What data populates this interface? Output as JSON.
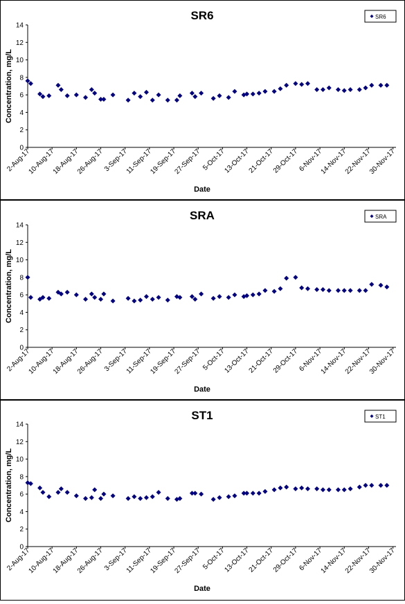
{
  "chart_data": [
    {
      "type": "scatter",
      "title": "SR6",
      "xlabel": "Date",
      "ylabel": "Concentration, mg/L",
      "ylim": [
        0,
        14
      ],
      "yticks": [
        "0",
        "2",
        "4",
        "6",
        "8",
        "10",
        "12",
        "14"
      ],
      "xticks": [
        "2-Aug-17",
        "10-Aug-17",
        "18-Aug-17",
        "26-Aug-17",
        "3-Sep-17",
        "11-Sep-17",
        "19-Sep-17",
        "27-Sep-17",
        "5-Oct-17",
        "13-Oct-17",
        "21-Oct-17",
        "29-Oct-17",
        "6-Nov-17",
        "14-Nov-17",
        "22-Nov-17",
        "30-Nov-17"
      ],
      "xlim": [
        "2017-08-02",
        "2017-12-01"
      ],
      "grid": false,
      "legend_position": "top-right",
      "marker_color": "#000080",
      "series": [
        {
          "name": "SR6",
          "x": [
            "2017-08-02",
            "2017-08-03",
            "2017-08-06",
            "2017-08-07",
            "2017-08-09",
            "2017-08-12",
            "2017-08-13",
            "2017-08-15",
            "2017-08-18",
            "2017-08-21",
            "2017-08-23",
            "2017-08-24",
            "2017-08-26",
            "2017-08-27",
            "2017-08-30",
            "2017-09-04",
            "2017-09-06",
            "2017-09-08",
            "2017-09-10",
            "2017-09-12",
            "2017-09-14",
            "2017-09-17",
            "2017-09-20",
            "2017-09-21",
            "2017-09-25",
            "2017-09-26",
            "2017-09-28",
            "2017-10-02",
            "2017-10-04",
            "2017-10-07",
            "2017-10-09",
            "2017-10-12",
            "2017-10-13",
            "2017-10-15",
            "2017-10-17",
            "2017-10-19",
            "2017-10-22",
            "2017-10-24",
            "2017-10-26",
            "2017-10-29",
            "2017-10-31",
            "2017-11-02",
            "2017-11-05",
            "2017-11-07",
            "2017-11-09",
            "2017-11-12",
            "2017-11-14",
            "2017-11-16",
            "2017-11-19",
            "2017-11-21",
            "2017-11-23",
            "2017-11-26",
            "2017-11-28"
          ],
          "y": [
            7.6,
            7.3,
            6.1,
            5.8,
            5.9,
            7.1,
            6.6,
            5.9,
            6,
            5.7,
            6.6,
            6.2,
            5.5,
            5.5,
            6,
            5.4,
            6.2,
            5.8,
            6.3,
            5.4,
            6,
            5.4,
            5.4,
            5.9,
            6.2,
            5.8,
            6.2,
            5.6,
            5.9,
            5.7,
            6.4,
            6,
            6.1,
            6.1,
            6.2,
            6.4,
            6.4,
            6.7,
            7.1,
            7.3,
            7.2,
            7.3,
            6.6,
            6.6,
            6.8,
            6.6,
            6.5,
            6.6,
            6.6,
            6.8,
            7.1,
            7.1,
            7.1
          ]
        }
      ]
    },
    {
      "type": "scatter",
      "title": "SRA",
      "xlabel": "Date",
      "ylabel": "Concentration, mg/L",
      "ylim": [
        0,
        14
      ],
      "yticks": [
        "0",
        "2",
        "4",
        "6",
        "8",
        "10",
        "12",
        "14"
      ],
      "xticks": [
        "2-Aug-17",
        "10-Aug-17",
        "18-Aug-17",
        "26-Aug-17",
        "3-Sep-17",
        "11-Sep-17",
        "19-Sep-17",
        "27-Sep-17",
        "5-Oct-17",
        "13-Oct-17",
        "21-Oct-17",
        "29-Oct-17",
        "6-Nov-17",
        "14-Nov-17",
        "22-Nov-17",
        "30-Nov-17"
      ],
      "xlim": [
        "2017-08-02",
        "2017-12-01"
      ],
      "grid": false,
      "legend_position": "top-right",
      "marker_color": "#000080",
      "series": [
        {
          "name": "SRA",
          "x": [
            "2017-08-02",
            "2017-08-03",
            "2017-08-06",
            "2017-08-07",
            "2017-08-09",
            "2017-08-12",
            "2017-08-13",
            "2017-08-15",
            "2017-08-18",
            "2017-08-21",
            "2017-08-23",
            "2017-08-24",
            "2017-08-26",
            "2017-08-27",
            "2017-08-30",
            "2017-09-04",
            "2017-09-06",
            "2017-09-08",
            "2017-09-10",
            "2017-09-12",
            "2017-09-14",
            "2017-09-17",
            "2017-09-20",
            "2017-09-21",
            "2017-09-25",
            "2017-09-26",
            "2017-09-28",
            "2017-10-02",
            "2017-10-04",
            "2017-10-07",
            "2017-10-09",
            "2017-10-12",
            "2017-10-13",
            "2017-10-15",
            "2017-10-17",
            "2017-10-19",
            "2017-10-22",
            "2017-10-24",
            "2017-10-26",
            "2017-10-29",
            "2017-10-31",
            "2017-11-02",
            "2017-11-05",
            "2017-11-07",
            "2017-11-09",
            "2017-11-12",
            "2017-11-14",
            "2017-11-16",
            "2017-11-19",
            "2017-11-21",
            "2017-11-23",
            "2017-11-26",
            "2017-11-28"
          ],
          "y": [
            8,
            5.7,
            5.5,
            5.7,
            5.6,
            6.3,
            6.1,
            6.3,
            6,
            5.5,
            6.1,
            5.7,
            5.5,
            6.1,
            5.3,
            5.6,
            5.3,
            5.4,
            5.8,
            5.5,
            5.7,
            5.4,
            5.8,
            5.7,
            5.8,
            5.5,
            6.1,
            5.6,
            5.8,
            5.7,
            6,
            5.8,
            5.9,
            6,
            6.1,
            6.5,
            6.4,
            6.7,
            7.9,
            8,
            6.8,
            6.7,
            6.6,
            6.6,
            6.5,
            6.5,
            6.5,
            6.5,
            6.5,
            6.5,
            7.2,
            7.1,
            6.9
          ]
        }
      ]
    },
    {
      "type": "scatter",
      "title": "ST1",
      "xlabel": "Date",
      "ylabel": "Concentration, mg/L",
      "ylim": [
        0,
        14
      ],
      "yticks": [
        "0",
        "2",
        "4",
        "6",
        "8",
        "10",
        "12",
        "14"
      ],
      "xticks": [
        "2-Aug-17",
        "10-Aug-17",
        "18-Aug-17",
        "26-Aug-17",
        "3-Sep-17",
        "11-Sep-17",
        "19-Sep-17",
        "27-Sep-17",
        "5-Oct-17",
        "13-Oct-17",
        "21-Oct-17",
        "29-Oct-17",
        "6-Nov-17",
        "14-Nov-17",
        "22-Nov-17",
        "30-Nov-17"
      ],
      "xlim": [
        "2017-08-02",
        "2017-12-01"
      ],
      "grid": false,
      "legend_position": "top-right",
      "marker_color": "#000080",
      "series": [
        {
          "name": "ST1",
          "x": [
            "2017-08-02",
            "2017-08-03",
            "2017-08-06",
            "2017-08-07",
            "2017-08-09",
            "2017-08-12",
            "2017-08-13",
            "2017-08-15",
            "2017-08-18",
            "2017-08-21",
            "2017-08-23",
            "2017-08-24",
            "2017-08-26",
            "2017-08-27",
            "2017-08-30",
            "2017-09-04",
            "2017-09-06",
            "2017-09-08",
            "2017-09-10",
            "2017-09-12",
            "2017-09-14",
            "2017-09-17",
            "2017-09-20",
            "2017-09-21",
            "2017-09-25",
            "2017-09-26",
            "2017-09-28",
            "2017-10-02",
            "2017-10-04",
            "2017-10-07",
            "2017-10-09",
            "2017-10-12",
            "2017-10-13",
            "2017-10-15",
            "2017-10-17",
            "2017-10-19",
            "2017-10-22",
            "2017-10-24",
            "2017-10-26",
            "2017-10-29",
            "2017-10-31",
            "2017-11-02",
            "2017-11-05",
            "2017-11-07",
            "2017-11-09",
            "2017-11-12",
            "2017-11-14",
            "2017-11-16",
            "2017-11-19",
            "2017-11-21",
            "2017-11-23",
            "2017-11-26",
            "2017-11-28"
          ],
          "y": [
            7.3,
            7.2,
            6.7,
            6.2,
            5.7,
            6.2,
            6.6,
            6.2,
            5.8,
            5.5,
            5.6,
            6.5,
            5.5,
            6,
            5.8,
            5.5,
            5.7,
            5.5,
            5.6,
            5.7,
            6.2,
            5.5,
            5.4,
            5.5,
            6.1,
            6.1,
            6,
            5.4,
            5.6,
            5.7,
            5.8,
            6.1,
            6.1,
            6.1,
            6.1,
            6.3,
            6.5,
            6.7,
            6.8,
            6.6,
            6.7,
            6.6,
            6.6,
            6.5,
            6.5,
            6.5,
            6.5,
            6.6,
            6.8,
            7,
            7,
            7,
            7
          ]
        }
      ]
    }
  ]
}
